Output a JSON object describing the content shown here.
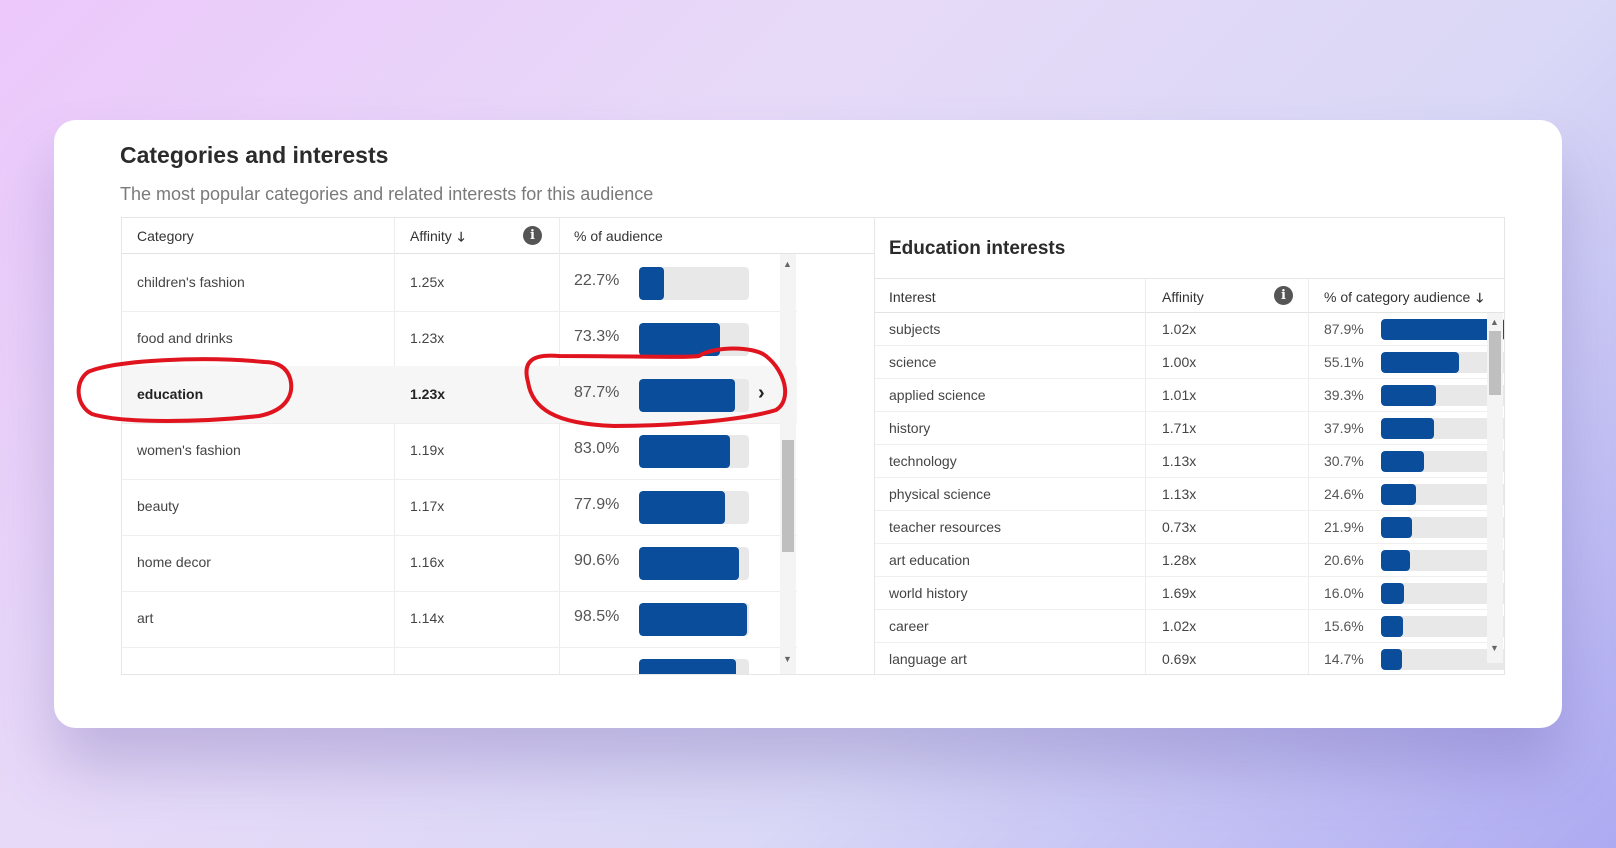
{
  "card": {
    "title": "Categories and interests",
    "subtitle": "The most popular categories and related interests for this audience"
  },
  "categories_table": {
    "headers": {
      "category": "Category",
      "affinity": "Affinity",
      "percent": "% of audience"
    },
    "rows": [
      {
        "category": "children's fashion",
        "affinity": "1.25x",
        "percent": "22.7%",
        "value": 22.7
      },
      {
        "category": "food and drinks",
        "affinity": "1.23x",
        "percent": "73.3%",
        "value": 73.3
      },
      {
        "category": "education",
        "affinity": "1.23x",
        "percent": "87.7%",
        "value": 87.7,
        "selected": true
      },
      {
        "category": "women's fashion",
        "affinity": "1.19x",
        "percent": "83.0%",
        "value": 83.0
      },
      {
        "category": "beauty",
        "affinity": "1.17x",
        "percent": "77.9%",
        "value": 77.9
      },
      {
        "category": "home decor",
        "affinity": "1.16x",
        "percent": "90.6%",
        "value": 90.6
      },
      {
        "category": "art",
        "affinity": "1.14x",
        "percent": "98.5%",
        "value": 98.5
      },
      {
        "category": "",
        "affinity": "",
        "percent": "",
        "value": 88.0
      }
    ]
  },
  "interests_panel": {
    "title": "Education interests",
    "headers": {
      "interest": "Interest",
      "affinity": "Affinity",
      "percent": "% of category audience"
    },
    "rows": [
      {
        "interest": "subjects",
        "affinity": "1.02x",
        "percent": "87.9%",
        "value": 87.9
      },
      {
        "interest": "science",
        "affinity": "1.00x",
        "percent": "55.1%",
        "value": 55.1
      },
      {
        "interest": "applied science",
        "affinity": "1.01x",
        "percent": "39.3%",
        "value": 39.3
      },
      {
        "interest": "history",
        "affinity": "1.71x",
        "percent": "37.9%",
        "value": 37.9
      },
      {
        "interest": "technology",
        "affinity": "1.13x",
        "percent": "30.7%",
        "value": 30.7
      },
      {
        "interest": "physical science",
        "affinity": "1.13x",
        "percent": "24.6%",
        "value": 24.6
      },
      {
        "interest": "teacher resources",
        "affinity": "0.73x",
        "percent": "21.9%",
        "value": 21.9
      },
      {
        "interest": "art education",
        "affinity": "1.28x",
        "percent": "20.6%",
        "value": 20.6
      },
      {
        "interest": "world history",
        "affinity": "1.69x",
        "percent": "16.0%",
        "value": 16.0
      },
      {
        "interest": "career",
        "affinity": "1.02x",
        "percent": "15.6%",
        "value": 15.6
      },
      {
        "interest": "language art",
        "affinity": "0.69x",
        "percent": "14.7%",
        "value": 14.7
      }
    ]
  },
  "colors": {
    "bar": "#0a4d9b",
    "track": "#e8e8e8",
    "annotation": "#e0141e"
  },
  "icons": {
    "sort": "arrow-down-icon",
    "info": "info-icon",
    "expand": "chevron-right-icon"
  }
}
